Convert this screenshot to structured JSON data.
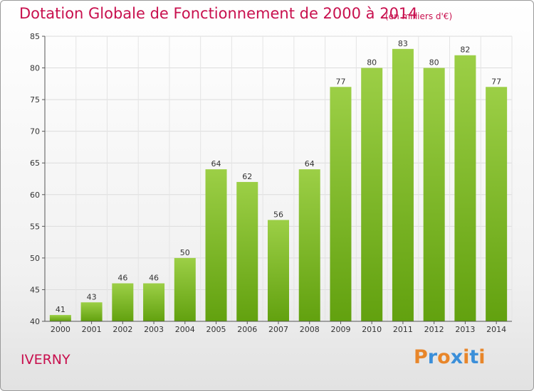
{
  "header": {
    "title": "Dotation Globale de Fonctionnement de 2000 à 2014",
    "unit": "(en milliers d'€)"
  },
  "footer": {
    "commune": "IVERNY",
    "logo_text": "Proxiti"
  },
  "colors": {
    "title": "#c8104e",
    "bar_light": "#9ccf46",
    "bar_dark": "#62a10f",
    "logo_letters": [
      "#e8862a",
      "#3b8fd9",
      "#e8862a",
      "#3b8fd9",
      "#e8862a",
      "#3b8fd9",
      "#e8862a"
    ]
  },
  "chart_data": {
    "type": "bar",
    "categories": [
      "2000",
      "2001",
      "2002",
      "2003",
      "2004",
      "2005",
      "2006",
      "2007",
      "2008",
      "2009",
      "2010",
      "2011",
      "2012",
      "2013",
      "2014"
    ],
    "values": [
      41,
      43,
      46,
      46,
      50,
      64,
      62,
      56,
      64,
      77,
      80,
      83,
      80,
      82,
      77
    ],
    "ylim": [
      40,
      85
    ],
    "yticks": [
      40,
      45,
      50,
      55,
      60,
      65,
      70,
      75,
      80,
      85
    ],
    "grid": true,
    "data_labels": true
  }
}
